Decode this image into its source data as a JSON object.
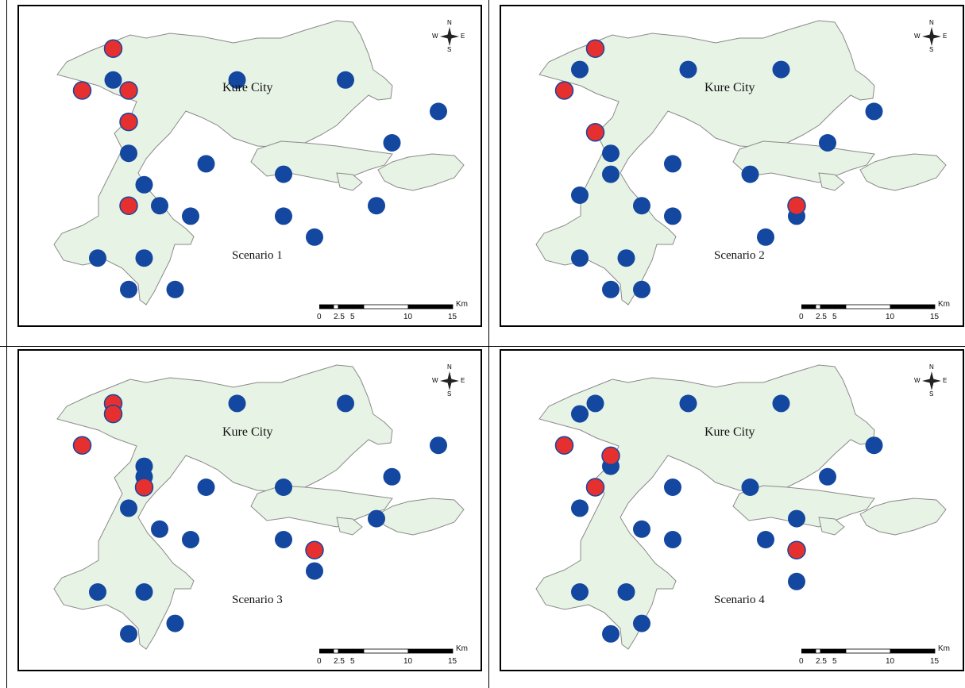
{
  "map_panels": [
    {
      "scenario_label": "Scenario 1",
      "city_label": "Kure City",
      "red_sites": [
        [
          3,
          1
        ],
        [
          1,
          5
        ],
        [
          4,
          5
        ],
        [
          4,
          8
        ],
        [
          4,
          16
        ]
      ],
      "blue_sites": [
        [
          3,
          4
        ],
        [
          11,
          4
        ],
        [
          18,
          4
        ],
        [
          24,
          7
        ],
        [
          21,
          10
        ],
        [
          4,
          11
        ],
        [
          9,
          12
        ],
        [
          14,
          13
        ],
        [
          5,
          14
        ],
        [
          6,
          16
        ],
        [
          8,
          17
        ],
        [
          20,
          16
        ],
        [
          14,
          17
        ],
        [
          16,
          19
        ],
        [
          2,
          21
        ],
        [
          5,
          21
        ],
        [
          4,
          24
        ],
        [
          7,
          24
        ]
      ]
    },
    {
      "scenario_label": "Scenario 2",
      "city_label": "Kure City",
      "red_sites": [
        [
          3,
          1
        ],
        [
          1,
          5
        ],
        [
          3,
          9
        ],
        [
          16,
          16
        ]
      ],
      "blue_sites": [
        [
          2,
          3
        ],
        [
          9,
          3
        ],
        [
          15,
          3
        ],
        [
          21,
          7
        ],
        [
          18,
          10
        ],
        [
          4,
          11
        ],
        [
          4,
          13
        ],
        [
          8,
          12
        ],
        [
          13,
          13
        ],
        [
          2,
          15
        ],
        [
          6,
          16
        ],
        [
          8,
          17
        ],
        [
          16,
          17
        ],
        [
          14,
          19
        ],
        [
          2,
          21
        ],
        [
          5,
          21
        ],
        [
          4,
          24
        ],
        [
          6,
          24
        ]
      ]
    },
    {
      "scenario_label": "Scenario 3",
      "city_label": "Kure City",
      "red_sites": [
        [
          3,
          2
        ],
        [
          3,
          3
        ],
        [
          1,
          6
        ],
        [
          5,
          10
        ],
        [
          16,
          16
        ]
      ],
      "blue_sites": [
        [
          3,
          2
        ],
        [
          11,
          2
        ],
        [
          18,
          2
        ],
        [
          24,
          6
        ],
        [
          21,
          9
        ],
        [
          5,
          8
        ],
        [
          5,
          9
        ],
        [
          9,
          10
        ],
        [
          14,
          10
        ],
        [
          4,
          12
        ],
        [
          6,
          14
        ],
        [
          8,
          15
        ],
        [
          20,
          13
        ],
        [
          14,
          15
        ],
        [
          16,
          18
        ],
        [
          2,
          20
        ],
        [
          5,
          20
        ],
        [
          4,
          24
        ],
        [
          7,
          23
        ]
      ]
    },
    {
      "scenario_label": "Scenario 4",
      "city_label": "Kure City",
      "red_sites": [
        [
          1,
          6
        ],
        [
          4,
          7
        ],
        [
          3,
          10
        ],
        [
          16,
          16
        ]
      ],
      "blue_sites": [
        [
          2,
          3
        ],
        [
          3,
          2
        ],
        [
          9,
          2
        ],
        [
          15,
          2
        ],
        [
          21,
          6
        ],
        [
          18,
          9
        ],
        [
          4,
          8
        ],
        [
          8,
          10
        ],
        [
          13,
          10
        ],
        [
          2,
          12
        ],
        [
          6,
          14
        ],
        [
          8,
          15
        ],
        [
          16,
          13
        ],
        [
          14,
          15
        ],
        [
          16,
          19
        ],
        [
          2,
          20
        ],
        [
          5,
          20
        ],
        [
          4,
          24
        ],
        [
          6,
          23
        ]
      ]
    }
  ],
  "compass": {
    "n": "N",
    "s": "S",
    "e": "E",
    "w": "W"
  },
  "scale": {
    "unit": "Km",
    "ticks": [
      "0",
      "2.5",
      "5",
      "10",
      "15"
    ]
  },
  "colors": {
    "land": "#e7f3e4",
    "coast": "#8a8a8a",
    "blue_site": "#1347a0",
    "red_site": "#e63030"
  }
}
